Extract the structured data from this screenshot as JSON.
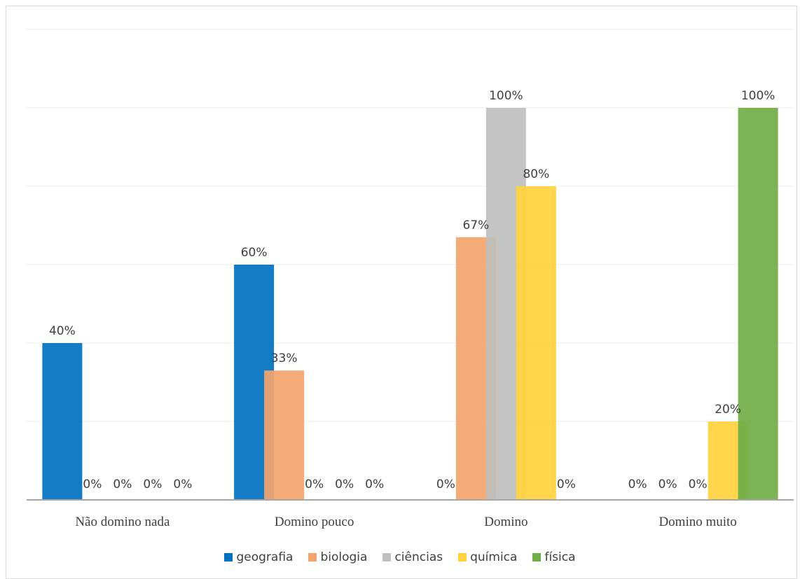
{
  "chart_data": {
    "type": "bar",
    "categories": [
      "Não domino nada",
      "Domino pouco",
      "Domino",
      "Domino muito"
    ],
    "series": [
      {
        "name": "geografia",
        "color": "#0070c0",
        "values": [
          40,
          60,
          0,
          0
        ],
        "labels": [
          "40%",
          "60%",
          "0%",
          "0%"
        ]
      },
      {
        "name": "biologia",
        "color": "#f4a46c",
        "values": [
          0,
          33,
          67,
          0
        ],
        "labels": [
          "0%",
          "33%",
          "67%",
          "0%"
        ]
      },
      {
        "name": "ciências",
        "color": "#bfbfbf",
        "values": [
          0,
          0,
          100,
          0
        ],
        "labels": [
          "0%",
          "0%",
          "100%",
          "0%"
        ]
      },
      {
        "name": "química",
        "color": "#ffd13d",
        "values": [
          0,
          0,
          80,
          20
        ],
        "labels": [
          "0%",
          "0%",
          "80%",
          "20%"
        ]
      },
      {
        "name": "física",
        "color": "#70ad47",
        "values": [
          0,
          0,
          0,
          100
        ],
        "labels": [
          "0%",
          "0%",
          "0%",
          "100%"
        ]
      }
    ],
    "ylim": [
      0,
      120
    ],
    "grid": true,
    "legend_position": "bottom"
  }
}
